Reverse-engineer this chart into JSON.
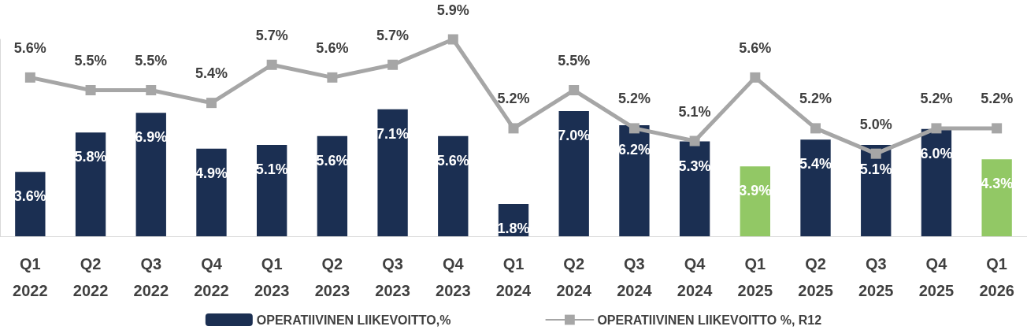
{
  "chart_data": {
    "type": "bar",
    "categories": [
      "Q1\n2022",
      "Q2\n2022",
      "Q3\n2022",
      "Q4\n2022",
      "Q1\n2023",
      "Q2\n2023",
      "Q3\n2023",
      "Q4\n2023",
      "Q1\n2024",
      "Q2\n2024",
      "Q3\n2024",
      "Q4\n2024",
      "Q1\n2025",
      "Q2\n2025",
      "Q3\n2025",
      "Q4\n2025",
      "Q1\n2026"
    ],
    "series": [
      {
        "name": "OPERATIIVINEN LIIKEVOITTO,%",
        "color": "#1b2f52",
        "colors": [
          "#1b2f52",
          "#1b2f52",
          "#1b2f52",
          "#1b2f52",
          "#1b2f52",
          "#1b2f52",
          "#1b2f52",
          "#1b2f52",
          "#1b2f52",
          "#1b2f52",
          "#1b2f52",
          "#1b2f52",
          "#92c865",
          "#1b2f52",
          "#1b2f52",
          "#1b2f52",
          "#92c865"
        ],
        "values": [
          3.6,
          5.8,
          6.9,
          4.9,
          5.1,
          5.6,
          7.1,
          5.6,
          1.8,
          7.0,
          6.2,
          5.3,
          3.9,
          5.4,
          5.1,
          6.0,
          4.3
        ],
        "value_labels": [
          "3.6%",
          "5.8%",
          "6.9%",
          "4.9%",
          "5.1%",
          "5.6%",
          "7.1%",
          "5.6%",
          "1.8%",
          "7.0%",
          "6.2%",
          "5.3%",
          "3.9%",
          "5.4%",
          "5.1%",
          "6.0%",
          "4.3%"
        ]
      },
      {
        "name": "OPERATIIVINEN LIIKEVOITTO %, R12",
        "type": "line",
        "axis": "y2",
        "color": "#a6a6a6",
        "values": [
          5.6,
          5.5,
          5.5,
          5.4,
          5.7,
          5.6,
          5.7,
          5.9,
          5.2,
          5.5,
          5.2,
          5.1,
          5.6,
          5.2,
          5.0,
          5.2,
          5.2
        ],
        "value_labels": [
          "5.6%",
          "5.5%",
          "5.5%",
          "5.4%",
          "5.7%",
          "5.6%",
          "5.7%",
          "5.9%",
          "5.2%",
          "5.5%",
          "5.2%",
          "5.1%",
          "5.6%",
          "5.2%",
          "5.0%",
          "5.2%",
          "5.2%"
        ]
      }
    ],
    "ylim": [
      0,
      11
    ],
    "y2lim": [
      4.35,
      5.9
    ],
    "tick_labels": "x",
    "marker": "square",
    "line_style": "solid",
    "legend": "bottom",
    "grid": false
  }
}
